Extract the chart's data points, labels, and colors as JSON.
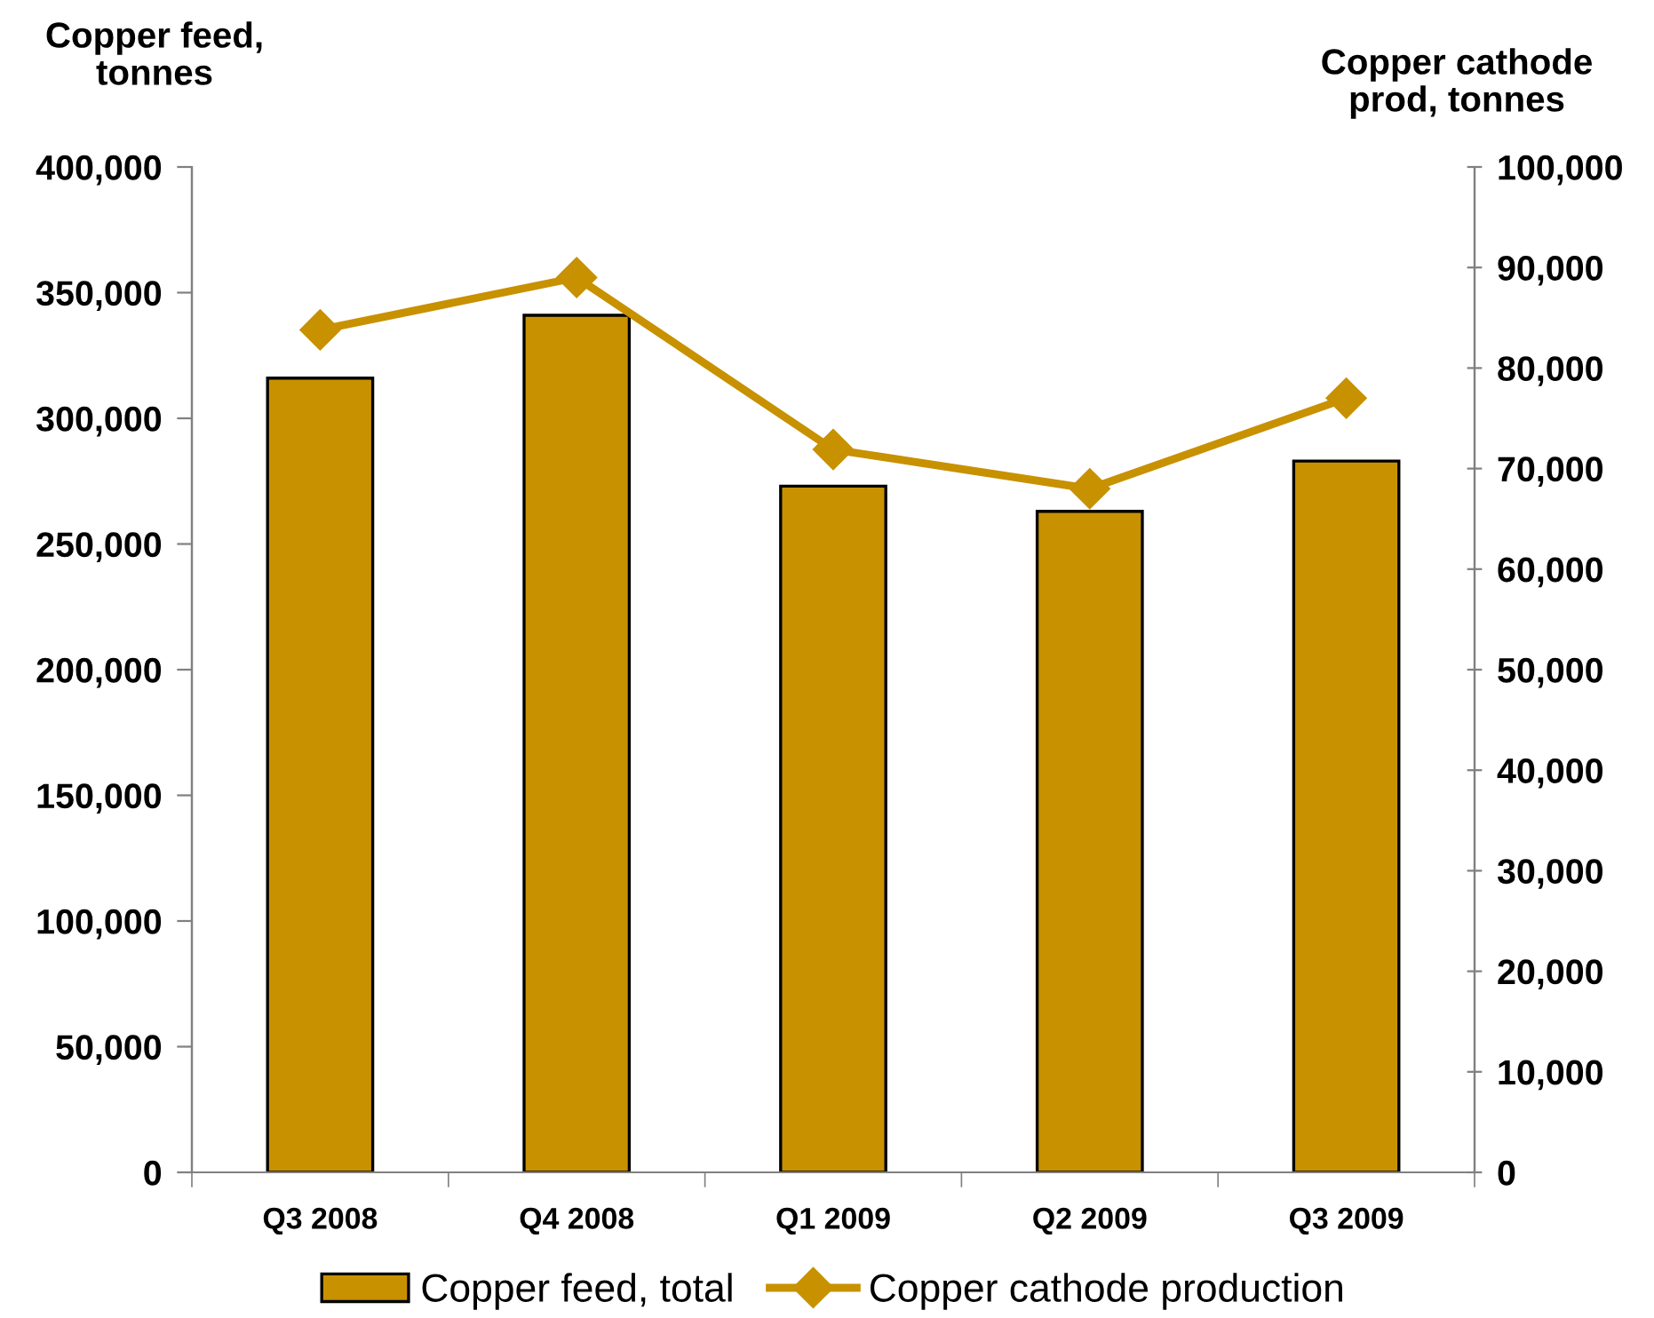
{
  "chart_data": {
    "type": "bar",
    "categories": [
      "Q3 2008",
      "Q4 2008",
      "Q1 2009",
      "Q2 2009",
      "Q3 2009"
    ],
    "series": [
      {
        "name": "Copper feed, total",
        "color": "#c89100",
        "values": [
          316000,
          341000,
          273000,
          263000,
          283000
        ]
      },
      {
        "name": "Copper cathode production",
        "type": "line",
        "axis": "y2",
        "color": "#c89100",
        "values": [
          83800,
          89000,
          71900,
          68000,
          77000
        ]
      }
    ],
    "ylabel": "Copper feed,\ntonnes",
    "y2label": "Copper cathode\nprod, tonnes",
    "ylim": [
      0,
      400000
    ],
    "yticks": [
      {
        "value": 0,
        "label": "0"
      },
      {
        "value": 50000,
        "label": "50,000"
      },
      {
        "value": 100000,
        "label": "100,000"
      },
      {
        "value": 150000,
        "label": "150,000"
      },
      {
        "value": 200000,
        "label": "200,000"
      },
      {
        "value": 250000,
        "label": "250,000"
      },
      {
        "value": 300000,
        "label": "300,000"
      },
      {
        "value": 350000,
        "label": "350,000"
      },
      {
        "value": 400000,
        "label": "400,000"
      }
    ],
    "y2lim": [
      0,
      100000
    ],
    "y2ticks": [
      {
        "value": 0,
        "label": "0"
      },
      {
        "value": 10000,
        "label": "10,000"
      },
      {
        "value": 20000,
        "label": "20,000"
      },
      {
        "value": 30000,
        "label": "30,000"
      },
      {
        "value": 40000,
        "label": "40,000"
      },
      {
        "value": 50000,
        "label": "50,000"
      },
      {
        "value": 60000,
        "label": "60,000"
      },
      {
        "value": 70000,
        "label": "70,000"
      },
      {
        "value": 80000,
        "label": "80,000"
      },
      {
        "value": 90000,
        "label": "90,000"
      },
      {
        "value": 100000,
        "label": "100,000"
      }
    ],
    "legend": "bottom",
    "marker": "diamond",
    "line_style": "solid",
    "grid": false
  }
}
